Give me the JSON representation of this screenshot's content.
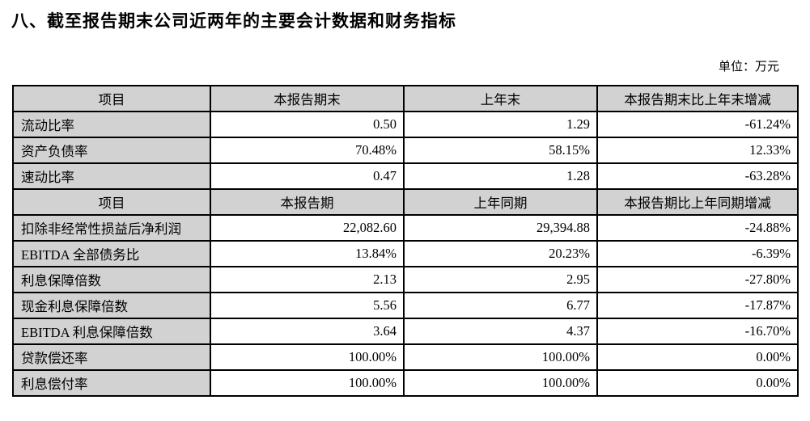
{
  "page": {
    "title": "八、截至报告期末公司近两年的主要会计数据和财务指标",
    "unit_label": "单位：万元"
  },
  "table": {
    "colors": {
      "header_bg": "#d2d2d2",
      "label_column_bg": "#d2d2d2",
      "border": "#000000",
      "cell_bg": "#ffffff"
    },
    "sections": [
      {
        "header": [
          "项目",
          "本报告期末",
          "上年末",
          "本报告期末比上年末增减"
        ],
        "rows": [
          {
            "label": "流动比率",
            "current": "0.50",
            "prior": "1.29",
            "change": "-61.24%"
          },
          {
            "label": "资产负债率",
            "current": "70.48%",
            "prior": "58.15%",
            "change": "12.33%"
          },
          {
            "label": "速动比率",
            "current": "0.47",
            "prior": "1.28",
            "change": "-63.28%"
          }
        ]
      },
      {
        "header": [
          "项目",
          "本报告期",
          "上年同期",
          "本报告期比上年同期增减"
        ],
        "rows": [
          {
            "label": "扣除非经常性损益后净利润",
            "current": "22,082.60",
            "prior": "29,394.88",
            "change": "-24.88%"
          },
          {
            "label": "EBITDA 全部债务比",
            "current": "13.84%",
            "prior": "20.23%",
            "change": "-6.39%"
          },
          {
            "label": "利息保障倍数",
            "current": "2.13",
            "prior": "2.95",
            "change": "-27.80%"
          },
          {
            "label": "现金利息保障倍数",
            "current": "5.56",
            "prior": "6.77",
            "change": "-17.87%"
          },
          {
            "label": "EBITDA 利息保障倍数",
            "current": "3.64",
            "prior": "4.37",
            "change": "-16.70%"
          },
          {
            "label": "贷款偿还率",
            "current": "100.00%",
            "prior": "100.00%",
            "change": "0.00%"
          },
          {
            "label": "利息偿付率",
            "current": "100.00%",
            "prior": "100.00%",
            "change": "0.00%"
          }
        ]
      }
    ]
  }
}
